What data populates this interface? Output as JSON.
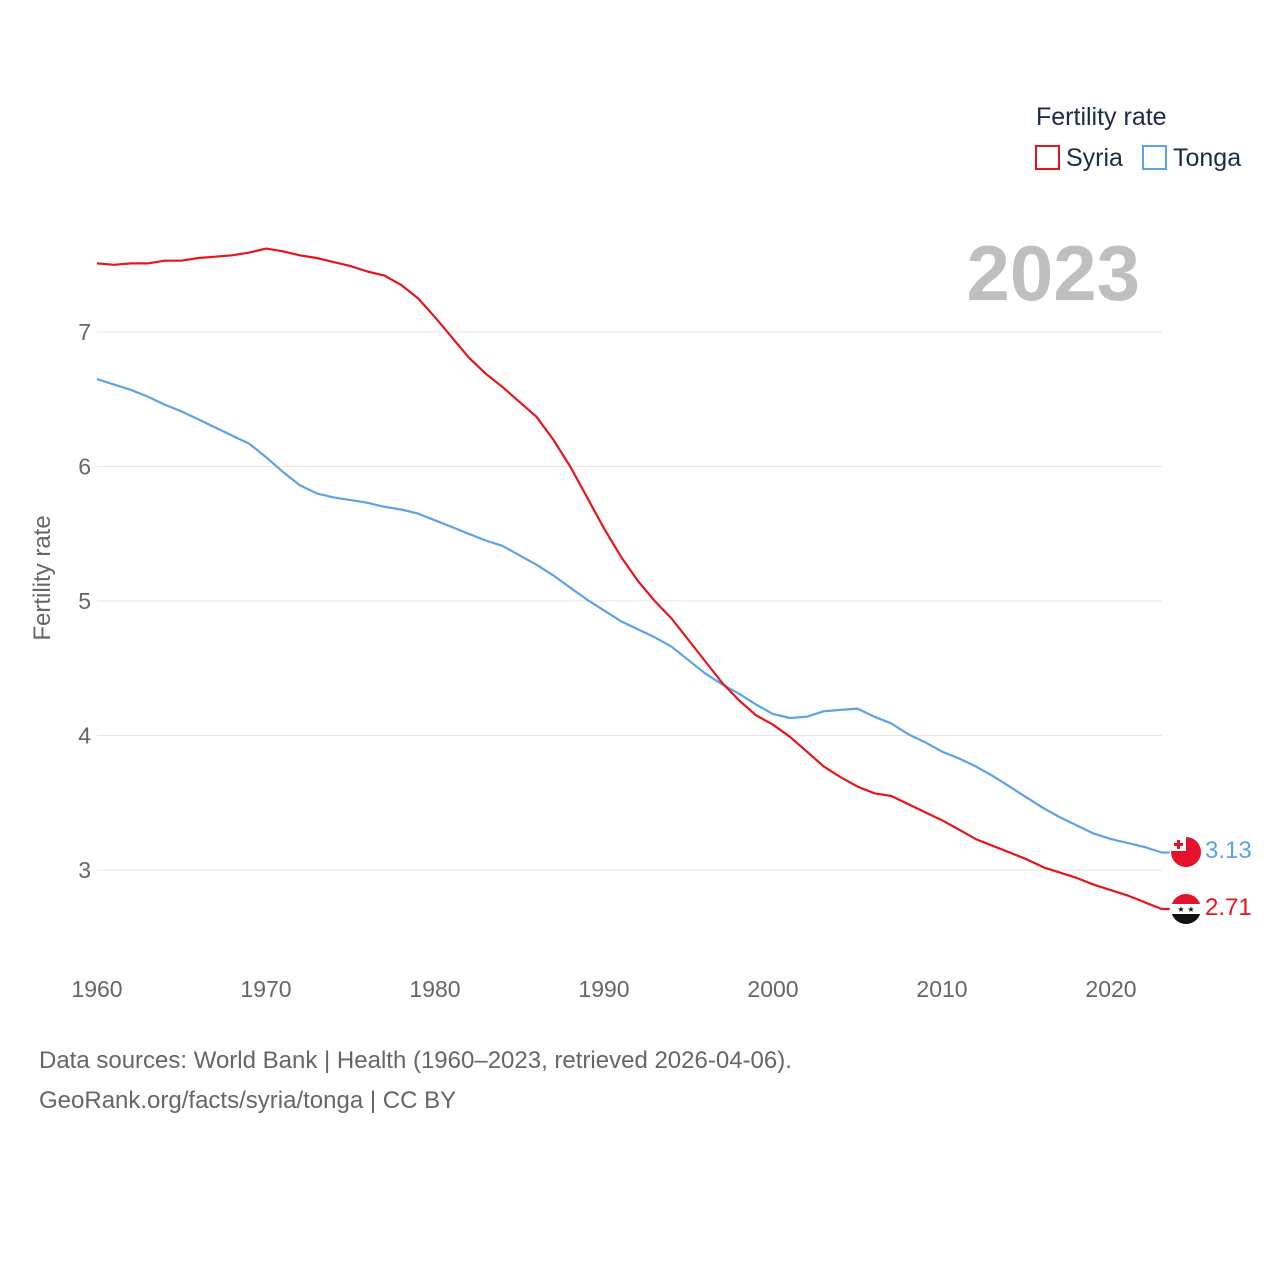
{
  "footer": {
    "source_line": "Data sources: World Bank | Health (1960–2023, retrieved 2026-04-06).",
    "url_line": "GeoRank.org/facts/syria/tonga | CC BY"
  },
  "chart_data": {
    "type": "line",
    "title": "2023",
    "ylabel": "Fertility rate",
    "xlabel": "",
    "legend_title": "Fertility rate",
    "legend_position": "top-right",
    "xlim": [
      1960,
      2023
    ],
    "ylim": [
      2.5,
      7.7
    ],
    "x_ticks": [
      1960,
      1970,
      1980,
      1990,
      2000,
      2010,
      2020
    ],
    "y_ticks": [
      3,
      4,
      5,
      6,
      7
    ],
    "grid": true,
    "x": [
      1960,
      1961,
      1962,
      1963,
      1964,
      1965,
      1966,
      1967,
      1968,
      1969,
      1970,
      1971,
      1972,
      1973,
      1974,
      1975,
      1976,
      1977,
      1978,
      1979,
      1980,
      1981,
      1982,
      1983,
      1984,
      1985,
      1986,
      1987,
      1988,
      1989,
      1990,
      1991,
      1992,
      1993,
      1994,
      1995,
      1996,
      1997,
      1998,
      1999,
      2000,
      2001,
      2002,
      2003,
      2004,
      2005,
      2006,
      2007,
      2008,
      2009,
      2010,
      2011,
      2012,
      2013,
      2014,
      2015,
      2016,
      2017,
      2018,
      2019,
      2020,
      2021,
      2022,
      2023
    ],
    "series": [
      {
        "name": "Syria",
        "color": "#e8141c",
        "end_label": "2.71",
        "values": [
          7.51,
          7.5,
          7.51,
          7.51,
          7.53,
          7.53,
          7.55,
          7.56,
          7.57,
          7.59,
          7.62,
          7.6,
          7.57,
          7.55,
          7.52,
          7.49,
          7.45,
          7.42,
          7.35,
          7.25,
          7.11,
          6.96,
          6.81,
          6.69,
          6.59,
          6.48,
          6.37,
          6.2,
          6.0,
          5.77,
          5.54,
          5.33,
          5.15,
          5.0,
          4.87,
          4.71,
          4.55,
          4.39,
          4.26,
          4.15,
          4.08,
          3.99,
          3.88,
          3.77,
          3.69,
          3.62,
          3.57,
          3.55,
          3.49,
          3.43,
          3.37,
          3.3,
          3.23,
          3.18,
          3.13,
          3.08,
          3.02,
          2.98,
          2.94,
          2.89,
          2.85,
          2.81,
          2.76,
          2.71
        ]
      },
      {
        "name": "Tonga",
        "color": "#5ba3e6",
        "end_label": "3.13",
        "values": [
          6.65,
          6.61,
          6.57,
          6.52,
          6.46,
          6.41,
          6.35,
          6.29,
          6.23,
          6.17,
          6.07,
          5.96,
          5.86,
          5.8,
          5.77,
          5.75,
          5.73,
          5.7,
          5.68,
          5.65,
          5.6,
          5.55,
          5.5,
          5.45,
          5.41,
          5.34,
          5.27,
          5.19,
          5.1,
          5.01,
          4.93,
          4.85,
          4.79,
          4.73,
          4.66,
          4.56,
          4.46,
          4.38,
          4.31,
          4.23,
          4.16,
          4.13,
          4.14,
          4.18,
          4.19,
          4.2,
          4.14,
          4.09,
          4.01,
          3.95,
          3.88,
          3.83,
          3.77,
          3.7,
          3.62,
          3.54,
          3.46,
          3.39,
          3.33,
          3.27,
          3.23,
          3.2,
          3.17,
          3.13
        ]
      }
    ]
  }
}
